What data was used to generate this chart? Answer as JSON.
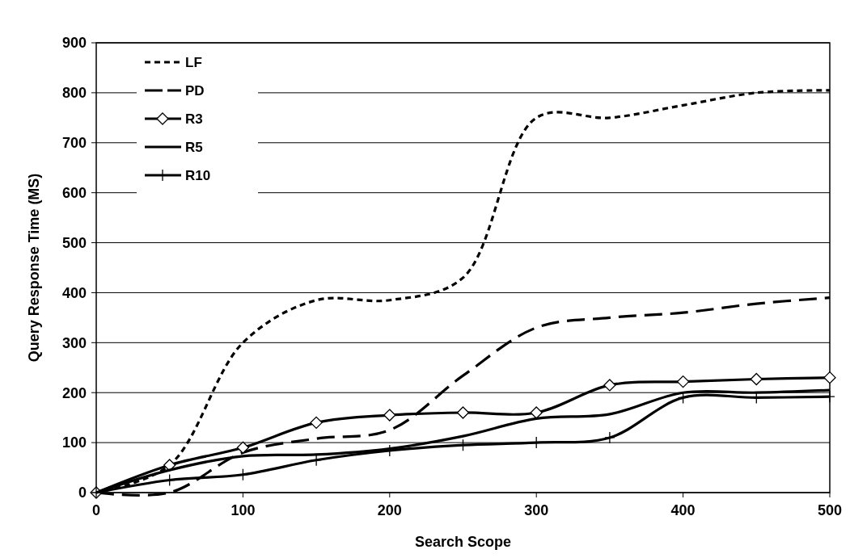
{
  "chart_data": {
    "type": "line",
    "xlabel": "Search Scope",
    "ylabel": "Query Response Time (MS)",
    "x": [
      0,
      50,
      100,
      150,
      200,
      250,
      300,
      350,
      400,
      450,
      500
    ],
    "xlim": [
      0,
      500
    ],
    "xticks": [
      0,
      100,
      200,
      300,
      400,
      500
    ],
    "ylim": [
      0,
      900
    ],
    "yticks": [
      0,
      100,
      200,
      300,
      400,
      500,
      600,
      700,
      800,
      900
    ],
    "grid": "y",
    "legend": "top left",
    "series": [
      {
        "name": "LF",
        "color": "#000000",
        "line_style": "dotted",
        "marker": "none",
        "values": [
          0,
          55,
          300,
          385,
          385,
          430,
          750,
          750,
          775,
          800,
          805
        ]
      },
      {
        "name": "PD",
        "color": "#000000",
        "line_style": "dashed",
        "marker": "none",
        "values": [
          0,
          0,
          80,
          108,
          125,
          234,
          330,
          350,
          360,
          378,
          390
        ]
      },
      {
        "name": "R3",
        "color": "#000000",
        "line_style": "solid",
        "marker": "diamond",
        "values": [
          0,
          55,
          90,
          140,
          155,
          160,
          160,
          215,
          222,
          227,
          230
        ]
      },
      {
        "name": "R5",
        "color": "#000000",
        "line_style": "solid",
        "marker": "none",
        "values": [
          0,
          45,
          73,
          76,
          88,
          113,
          148,
          157,
          200,
          200,
          205
        ]
      },
      {
        "name": "R10",
        "color": "#000000",
        "line_style": "solid",
        "marker": "cross",
        "values": [
          0,
          25,
          36,
          65,
          84,
          95,
          100,
          110,
          190,
          190,
          192
        ]
      }
    ]
  }
}
